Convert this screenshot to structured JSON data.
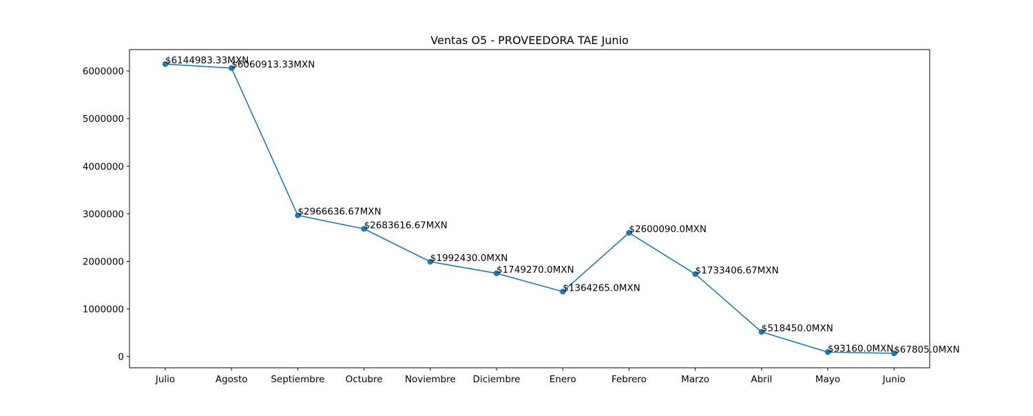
{
  "chart_data": {
    "type": "line",
    "title": "Ventas O5 - PROVEEDORA TAE Junio",
    "xlabel": "",
    "ylabel": "",
    "categories": [
      "Julio",
      "Agosto",
      "Septiembre",
      "Octubre",
      "Noviembre",
      "Diciembre",
      "Enero",
      "Febrero",
      "Marzo",
      "Abril",
      "Mayo",
      "Junio"
    ],
    "values": [
      6144983.33,
      6060913.33,
      2966636.67,
      2683616.67,
      1992430.0,
      1749270.0,
      1364265.0,
      2600090.0,
      1733406.67,
      518450.0,
      93160.0,
      67805.0
    ],
    "data_labels": [
      "$6144983.33MXN",
      "$6060913.33MXN",
      "$2966636.67MXN",
      "$2683616.67MXN",
      "$1992430.0MXN",
      "$1749270.0MXN",
      "$1364265.0MXN",
      "$2600090.0MXN",
      "$1733406.67MXN",
      "$518450.0MXN",
      "$93160.0MXN",
      "$67805.0MXN"
    ],
    "y_ticks": [
      0,
      1000000,
      2000000,
      3000000,
      4000000,
      5000000,
      6000000
    ],
    "y_tick_labels": [
      "0",
      "1000000",
      "2000000",
      "3000000",
      "4000000",
      "5000000",
      "6000000"
    ],
    "ylim": [
      -236000,
      6450000
    ],
    "grid": false,
    "legend": "none",
    "line_color": "#1f77b4",
    "marker": "circle"
  }
}
